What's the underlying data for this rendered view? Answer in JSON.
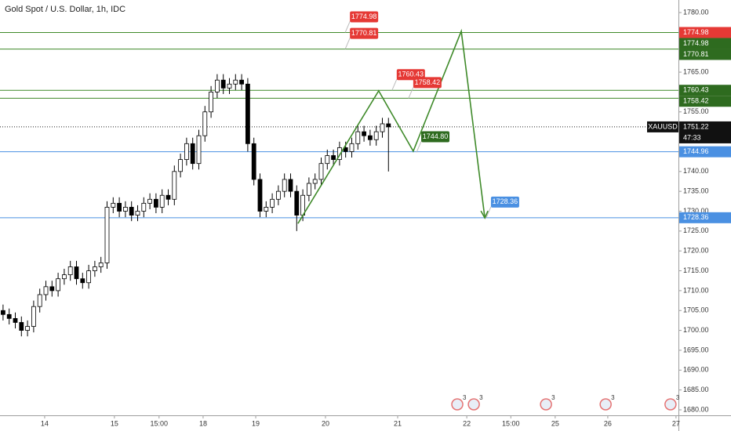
{
  "chart_data": {
    "type": "candlestick",
    "title": "Gold Spot / U.S. Dollar, 1h, IDC",
    "symbol": "XAUUSD",
    "countdown": "47:33",
    "xlim": [
      0,
      221.8
    ],
    "ylim": [
      1678.62,
      1783.16
    ],
    "xticks": [
      {
        "value": 14.6,
        "label": "14"
      },
      {
        "value": 37.4,
        "label": "15"
      },
      {
        "value": 52,
        "label": "15:00"
      },
      {
        "value": 66.4,
        "label": "18"
      },
      {
        "value": 83.6,
        "label": "19"
      },
      {
        "value": 106.4,
        "label": "20"
      },
      {
        "value": 130,
        "label": "21"
      },
      {
        "value": 152.6,
        "label": "22"
      },
      {
        "value": 167,
        "label": "15:00"
      },
      {
        "value": 181.5,
        "label": "25"
      },
      {
        "value": 198.7,
        "label": "26"
      },
      {
        "value": 221,
        "label": "27"
      }
    ],
    "yticks": [
      {
        "value": 1780,
        "label": "1780.00"
      },
      {
        "value": 1765,
        "label": "1765.00"
      },
      {
        "value": 1755,
        "label": "1755.00"
      },
      {
        "value": 1740,
        "label": "1740.00"
      },
      {
        "value": 1735,
        "label": "1735.00"
      },
      {
        "value": 1730,
        "label": "1730.00"
      },
      {
        "value": 1725,
        "label": "1725.00"
      },
      {
        "value": 1720,
        "label": "1720.00"
      },
      {
        "value": 1715,
        "label": "1715.00"
      },
      {
        "value": 1710,
        "label": "1710.00"
      },
      {
        "value": 1705,
        "label": "1705.00"
      },
      {
        "value": 1700,
        "label": "1700.00"
      },
      {
        "value": 1695,
        "label": "1695.00"
      },
      {
        "value": 1690,
        "label": "1690.00"
      },
      {
        "value": 1685,
        "label": "1685.00"
      },
      {
        "value": 1680,
        "label": "1680.00"
      }
    ],
    "up_color": "#ffffff",
    "down_color": "#000000",
    "x": [
      1,
      3,
      5,
      7,
      9,
      11,
      13,
      15,
      17,
      19,
      21,
      23,
      25,
      27,
      29,
      31,
      33,
      35,
      37,
      39,
      41,
      43,
      45,
      47,
      49,
      51,
      53,
      55,
      57,
      59,
      61,
      63,
      65,
      67,
      69,
      71,
      73,
      75,
      77,
      79,
      81,
      83,
      85,
      87,
      89,
      91,
      93,
      95,
      97,
      99,
      101,
      103,
      105,
      107,
      109,
      111,
      113,
      115,
      117,
      119,
      121,
      123,
      125,
      127
    ],
    "open": [
      1705,
      1704,
      1703,
      1702,
      1700,
      1701,
      1706,
      1709,
      1711,
      1710,
      1713,
      1714,
      1716,
      1713,
      1712,
      1715,
      1716,
      1717,
      1731,
      1732,
      1730,
      1731,
      1729,
      1730,
      1732,
      1733,
      1731,
      1734,
      1733,
      1740,
      1743,
      1747,
      1742,
      1749,
      1755,
      1760,
      1763,
      1761,
      1762,
      1763,
      1762,
      1747,
      1738,
      1730,
      1731,
      1733,
      1735,
      1738,
      1735,
      1729,
      1734,
      1737,
      1738,
      1742,
      1744,
      1743,
      1746,
      1745,
      1747,
      1750,
      1749,
      1748,
      1750,
      1752
    ],
    "high": [
      1706.5,
      1705.5,
      1704.5,
      1703.5,
      1702.5,
      1707.5,
      1710.5,
      1712.5,
      1712.5,
      1714.5,
      1715.5,
      1717.5,
      1717.5,
      1714.5,
      1716.5,
      1717.5,
      1718.5,
      1732.5,
      1733.5,
      1733.5,
      1732.5,
      1732.5,
      1731.5,
      1733.5,
      1734.5,
      1734.5,
      1735.5,
      1735.5,
      1741.5,
      1744.5,
      1748.5,
      1748.5,
      1750.5,
      1756.5,
      1761.5,
      1764.5,
      1764.5,
      1763.5,
      1764.5,
      1764.5,
      1763.5,
      1748.5,
      1739.5,
      1732.5,
      1734.5,
      1736.5,
      1739.5,
      1739.5,
      1736.5,
      1735.5,
      1738.5,
      1739.5,
      1743.5,
      1745.5,
      1745.5,
      1747.5,
      1747.5,
      1748.5,
      1751.5,
      1751.5,
      1750.5,
      1751.5,
      1753.5,
      1753.5
    ],
    "low": [
      1702.5,
      1701.5,
      1700.5,
      1698.5,
      1698.5,
      1699.5,
      1704.5,
      1707.5,
      1708.5,
      1708.5,
      1711.5,
      1712.5,
      1711.5,
      1710.5,
      1710.5,
      1713.5,
      1714.5,
      1715.5,
      1729.5,
      1728.5,
      1728.5,
      1727.5,
      1727.5,
      1728.5,
      1730.5,
      1729.5,
      1729.5,
      1731.5,
      1731.5,
      1738.5,
      1741.5,
      1740.5,
      1740.5,
      1747.5,
      1753.5,
      1758.5,
      1759.5,
      1759.5,
      1760.5,
      1760.5,
      1745,
      1736.5,
      1728.5,
      1728.5,
      1729.5,
      1731.5,
      1733.5,
      1733.5,
      1725,
      1727.5,
      1732.5,
      1735.5,
      1736.5,
      1740.5,
      1741.5,
      1741.5,
      1743.5,
      1743.5,
      1745.5,
      1747.5,
      1746.5,
      1746.5,
      1748.5,
      1740
    ],
    "close": [
      1704,
      1703,
      1702,
      1700,
      1701,
      1706,
      1709,
      1711,
      1710,
      1713,
      1714,
      1716,
      1713,
      1712,
      1715,
      1716,
      1717,
      1731,
      1732,
      1730,
      1731,
      1729,
      1730,
      1732,
      1733,
      1731,
      1734,
      1733,
      1740,
      1743,
      1747,
      1742,
      1749,
      1755,
      1760,
      1763,
      1761,
      1762,
      1763,
      1762,
      1747,
      1738,
      1730,
      1731,
      1733,
      1735,
      1738,
      1735,
      1729,
      1734,
      1737,
      1738,
      1742,
      1744,
      1743,
      1746,
      1745,
      1747,
      1750,
      1749,
      1748,
      1750,
      1752,
      1751.22
    ],
    "last_price": 1751.22,
    "levels": [
      {
        "value": 1774.98,
        "color": "#3f8a2a"
      },
      {
        "value": 1770.81,
        "color": "#3f8a2a"
      },
      {
        "value": 1760.43,
        "color": "#3f8a2a"
      },
      {
        "value": 1758.42,
        "color": "#3f8a2a"
      },
      {
        "value": 1744.96,
        "color": "#4a90e2"
      },
      {
        "value": 1728.36,
        "color": "#4a90e2"
      }
    ],
    "axis_labels": [
      {
        "value": 1774.98,
        "color": "#e53935"
      },
      {
        "value": 1774.98,
        "color": "#2e6b1f"
      },
      {
        "value": 1770.81,
        "color": "#2e6b1f"
      },
      {
        "value": 1760.43,
        "color": "#2e6b1f"
      },
      {
        "value": 1758.42,
        "color": "#2e6b1f"
      },
      {
        "value": 1744.96,
        "color": "#4a90e2"
      },
      {
        "value": 1728.36,
        "color": "#4a90e2"
      }
    ],
    "callouts": [
      {
        "x": 114.4,
        "value": 1774.98,
        "color": "#e53935"
      },
      {
        "x": 114.4,
        "value": 1770.81,
        "color": "#e53935"
      },
      {
        "x": 129.7,
        "value": 1760.43,
        "color": "#e53935"
      },
      {
        "x": 135.1,
        "value": 1758.42,
        "color": "#e53935"
      },
      {
        "x": 137.7,
        "value": 1744.8,
        "label": "1744.80",
        "color": "#2e6b1f"
      },
      {
        "x": 160.5,
        "value": 1728.36,
        "color": "#4a90e2"
      }
    ],
    "path": {
      "x": [
        97.4,
        123.8,
        135.1,
        150.8,
        158.5
      ],
      "y": [
        1726.9,
        1760.3,
        1745.1,
        1775.3,
        1728.3
      ],
      "color": "#3f8a2a"
    },
    "events": [
      {
        "x": 149.5,
        "label": "3"
      },
      {
        "x": 154.9,
        "label": "3"
      },
      {
        "x": 178.5,
        "label": "3"
      },
      {
        "x": 198,
        "label": "3"
      },
      {
        "x": 219.2,
        "label": "3"
      }
    ]
  }
}
